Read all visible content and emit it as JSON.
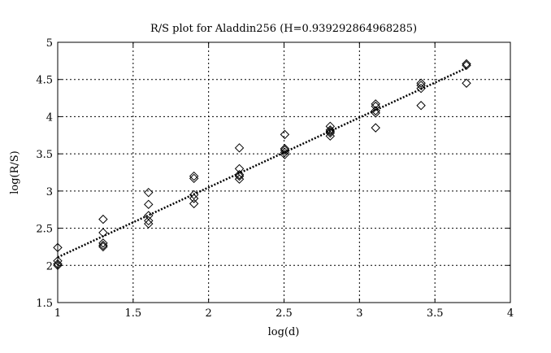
{
  "chart_data": {
    "type": "scatter",
    "title": "R/S plot for Aladdin256 (H=0.939292864968285)",
    "xlabel": "log(d)",
    "ylabel": "log(R/S)",
    "xlim": [
      1,
      4
    ],
    "ylim": [
      1.5,
      5
    ],
    "xticks": [
      "1",
      "1.5",
      "2",
      "2.5",
      "3",
      "3.5",
      "4"
    ],
    "yticks": [
      "1.5",
      "2",
      "2.5",
      "3",
      "3.5",
      "4",
      "4.5",
      "5"
    ],
    "grid": true,
    "marker": "diamond",
    "points": [
      [
        1.0,
        2.24
      ],
      [
        1.0,
        2.06
      ],
      [
        1.0,
        2.02
      ],
      [
        1.0,
        2.0
      ],
      [
        1.301,
        2.62
      ],
      [
        1.301,
        2.44
      ],
      [
        1.301,
        2.3
      ],
      [
        1.301,
        2.27
      ],
      [
        1.301,
        2.25
      ],
      [
        1.602,
        2.98
      ],
      [
        1.602,
        2.82
      ],
      [
        1.602,
        2.67
      ],
      [
        1.602,
        2.6
      ],
      [
        1.602,
        2.56
      ],
      [
        1.903,
        3.2
      ],
      [
        1.903,
        3.17
      ],
      [
        1.903,
        2.95
      ],
      [
        1.903,
        2.9
      ],
      [
        1.903,
        2.83
      ],
      [
        2.204,
        3.58
      ],
      [
        2.204,
        3.3
      ],
      [
        2.204,
        3.22
      ],
      [
        2.204,
        3.2
      ],
      [
        2.204,
        3.16
      ],
      [
        2.505,
        3.76
      ],
      [
        2.505,
        3.57
      ],
      [
        2.505,
        3.55
      ],
      [
        2.505,
        3.52
      ],
      [
        2.505,
        3.49
      ],
      [
        2.806,
        3.87
      ],
      [
        2.806,
        3.82
      ],
      [
        2.806,
        3.8
      ],
      [
        2.806,
        3.78
      ],
      [
        2.806,
        3.74
      ],
      [
        3.107,
        4.17
      ],
      [
        3.107,
        4.14
      ],
      [
        3.107,
        4.08
      ],
      [
        3.107,
        4.05
      ],
      [
        3.107,
        3.85
      ],
      [
        3.408,
        4.45
      ],
      [
        3.408,
        4.42
      ],
      [
        3.408,
        4.38
      ],
      [
        3.408,
        4.15
      ],
      [
        3.709,
        4.71
      ],
      [
        3.709,
        4.69
      ],
      [
        3.709,
        4.45
      ]
    ],
    "fit_line": {
      "slope": 0.939292864968285,
      "intercept": 1.17,
      "x_range": [
        1,
        3.709
      ],
      "style": "dotted"
    }
  }
}
